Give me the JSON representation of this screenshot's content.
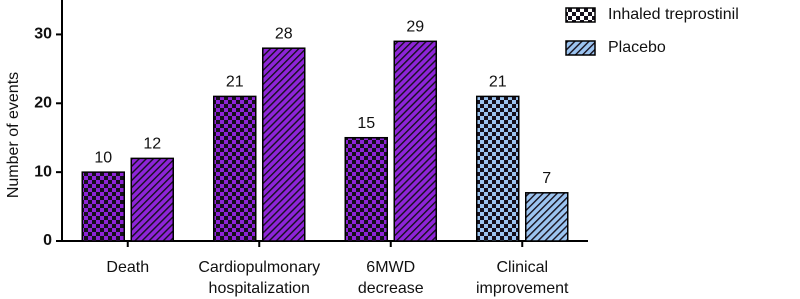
{
  "chart_data": {
    "type": "bar",
    "y_label": "Number of events",
    "categories": [
      "Death",
      "Cardiopulmonary\nhospitalization",
      "6MWD\ndecrease",
      "Clinical\nimprovement"
    ],
    "series": [
      {
        "name": "Inhaled treprostinil",
        "pattern": "checker",
        "color": "#ffffff",
        "bar_colors": [
          "#8e24d8",
          "#8e24d8",
          "#8e24d8",
          "#9cc4f0"
        ],
        "values": [
          10,
          21,
          15,
          21
        ]
      },
      {
        "name": "Placebo",
        "pattern": "hatch",
        "color": "#9cc4f0",
        "bar_colors": [
          "#8e24d8",
          "#8e24d8",
          "#8e24d8",
          "#9cc4f0"
        ],
        "values": [
          12,
          28,
          29,
          7
        ]
      }
    ],
    "ylim": [
      0,
      35
    ],
    "yticks": [
      0,
      10,
      20,
      30
    ],
    "legend": "top-right"
  }
}
